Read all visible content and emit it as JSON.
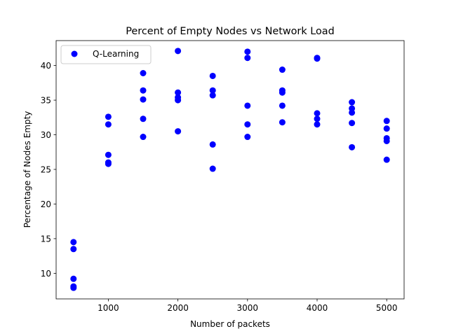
{
  "chart_data": {
    "type": "scatter",
    "title": "Percent of Empty Nodes vs Network Load",
    "xlabel": "Number of packets",
    "ylabel": "Percentage of Nodes Empty",
    "xlim": [
      250,
      5250
    ],
    "ylim": [
      6.3,
      43.6
    ],
    "xticks": [
      1000,
      2000,
      3000,
      4000,
      5000
    ],
    "yticks": [
      10,
      15,
      20,
      25,
      30,
      35,
      40
    ],
    "legend_position": "top-left",
    "grid": false,
    "series": [
      {
        "name": "Q-Learning",
        "color": "#0000ff",
        "marker": "circle",
        "points": [
          {
            "x": 500,
            "y": 14.5
          },
          {
            "x": 500,
            "y": 13.5
          },
          {
            "x": 500,
            "y": 9.2
          },
          {
            "x": 500,
            "y": 8.1
          },
          {
            "x": 500,
            "y": 7.9
          },
          {
            "x": 1000,
            "y": 32.6
          },
          {
            "x": 1000,
            "y": 31.5
          },
          {
            "x": 1000,
            "y": 27.1
          },
          {
            "x": 1000,
            "y": 26.0
          },
          {
            "x": 1000,
            "y": 25.8
          },
          {
            "x": 1500,
            "y": 38.9
          },
          {
            "x": 1500,
            "y": 36.4
          },
          {
            "x": 1500,
            "y": 35.1
          },
          {
            "x": 1500,
            "y": 32.3
          },
          {
            "x": 1500,
            "y": 29.7
          },
          {
            "x": 2000,
            "y": 42.1
          },
          {
            "x": 2000,
            "y": 36.1
          },
          {
            "x": 2000,
            "y": 35.4
          },
          {
            "x": 2000,
            "y": 35.0
          },
          {
            "x": 2000,
            "y": 30.5
          },
          {
            "x": 2500,
            "y": 38.5
          },
          {
            "x": 2500,
            "y": 36.4
          },
          {
            "x": 2500,
            "y": 35.7
          },
          {
            "x": 2500,
            "y": 28.6
          },
          {
            "x": 2500,
            "y": 25.1
          },
          {
            "x": 3000,
            "y": 42.0
          },
          {
            "x": 3000,
            "y": 41.1
          },
          {
            "x": 3000,
            "y": 34.2
          },
          {
            "x": 3000,
            "y": 31.5
          },
          {
            "x": 3000,
            "y": 29.7
          },
          {
            "x": 3500,
            "y": 39.4
          },
          {
            "x": 3500,
            "y": 36.4
          },
          {
            "x": 3500,
            "y": 36.1
          },
          {
            "x": 3500,
            "y": 34.2
          },
          {
            "x": 3500,
            "y": 31.8
          },
          {
            "x": 4000,
            "y": 41.1
          },
          {
            "x": 4000,
            "y": 41.0
          },
          {
            "x": 4000,
            "y": 33.1
          },
          {
            "x": 4000,
            "y": 32.3
          },
          {
            "x": 4000,
            "y": 31.5
          },
          {
            "x": 4500,
            "y": 34.7
          },
          {
            "x": 4500,
            "y": 33.8
          },
          {
            "x": 4500,
            "y": 33.2
          },
          {
            "x": 4500,
            "y": 31.7
          },
          {
            "x": 4500,
            "y": 28.2
          },
          {
            "x": 5000,
            "y": 32.0
          },
          {
            "x": 5000,
            "y": 30.9
          },
          {
            "x": 5000,
            "y": 29.5
          },
          {
            "x": 5000,
            "y": 29.1
          },
          {
            "x": 5000,
            "y": 26.4
          }
        ]
      }
    ]
  }
}
